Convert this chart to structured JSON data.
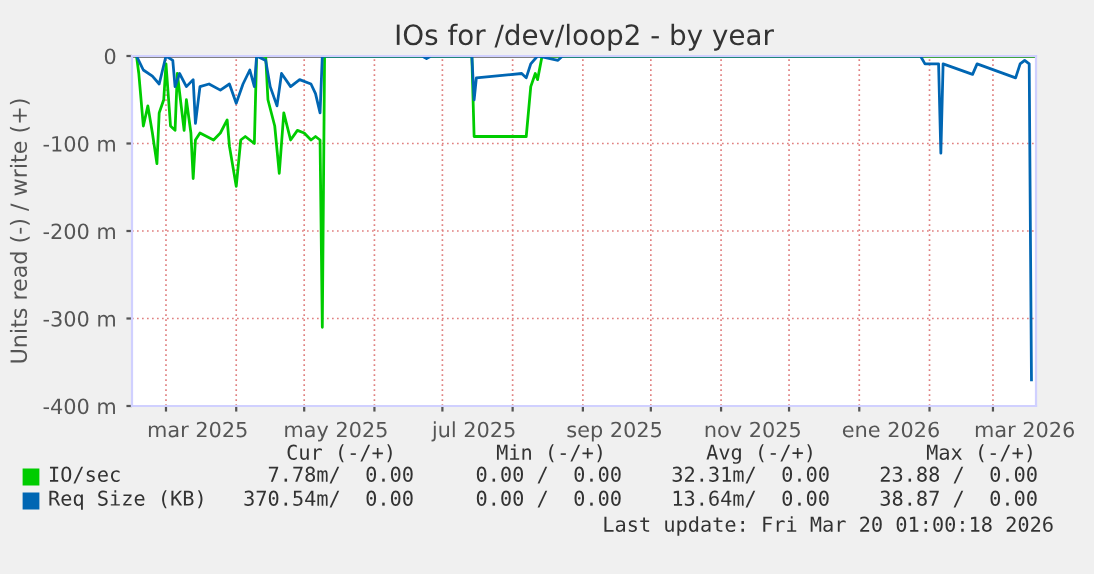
{
  "chart_data": {
    "type": "line",
    "title": "IOs for /dev/loop2 - by year",
    "ylabel": "Units read (-) / write (+)",
    "xlim": [
      "2025-02-14",
      "2026-03-20"
    ],
    "ylim": [
      -400,
      0
    ],
    "yticks": [
      {
        "value": 0,
        "label": "0"
      },
      {
        "value": -100,
        "label": "-100 m"
      },
      {
        "value": -200,
        "label": "-200 m"
      },
      {
        "value": -300,
        "label": "-300 m"
      },
      {
        "value": -400,
        "label": "-400 m"
      }
    ],
    "xticks": [
      {
        "value": "2025-03-01",
        "label": null
      },
      {
        "value": "2025-03-15",
        "label": "mar 2025"
      },
      {
        "value": "2025-04-01",
        "label": null
      },
      {
        "value": "2025-05-01",
        "label": null
      },
      {
        "value": "2025-05-15",
        "label": "may 2025"
      },
      {
        "value": "2025-06-01",
        "label": null
      },
      {
        "value": "2025-07-01",
        "label": null
      },
      {
        "value": "2025-07-15",
        "label": "jul 2025"
      },
      {
        "value": "2025-08-01",
        "label": null
      },
      {
        "value": "2025-09-01",
        "label": null
      },
      {
        "value": "2025-09-15",
        "label": "sep 2025"
      },
      {
        "value": "2025-10-01",
        "label": null
      },
      {
        "value": "2025-11-01",
        "label": null
      },
      {
        "value": "2025-11-15",
        "label": "nov 2025"
      },
      {
        "value": "2025-12-01",
        "label": null
      },
      {
        "value": "2026-01-01",
        "label": null
      },
      {
        "value": "2026-01-15",
        "label": "ene 2026"
      },
      {
        "value": "2026-02-01",
        "label": null
      },
      {
        "value": "2026-03-01",
        "label": null
      },
      {
        "value": "2026-03-15",
        "label": "mar 2026"
      }
    ],
    "grid": true,
    "legend": "bottom",
    "marker": "none",
    "line_style": "solid",
    "series": [
      {
        "name": "IO/sec",
        "color": "#00cc00",
        "x": [
          "2025-02-16",
          "2025-02-17",
          "2025-02-19",
          "2025-02-21",
          "2025-02-23",
          "2025-02-25",
          "2025-02-26",
          "2025-02-28",
          "2025-03-01",
          "2025-03-03",
          "2025-03-05",
          "2025-03-06",
          "2025-03-09",
          "2025-03-10",
          "2025-03-12",
          "2025-03-13",
          "2025-03-14",
          "2025-03-16",
          "2025-03-19",
          "2025-03-22",
          "2025-03-25",
          "2025-03-28",
          "2025-03-29",
          "2025-04-01",
          "2025-04-03",
          "2025-04-05",
          "2025-04-09",
          "2025-04-10",
          "2025-04-14",
          "2025-04-15",
          "2025-04-18",
          "2025-04-20",
          "2025-04-22",
          "2025-04-25",
          "2025-04-28",
          "2025-05-01",
          "2025-05-04",
          "2025-05-06",
          "2025-05-08",
          "2025-05-09",
          "2025-05-10",
          "2025-07-14",
          "2025-07-15",
          "2025-08-07",
          "2025-08-09",
          "2025-08-11",
          "2025-08-12",
          "2025-08-14",
          "2026-03-20"
        ],
        "values": [
          0,
          -20,
          -80,
          -57,
          -88,
          -123,
          -65,
          -50,
          -9,
          -80,
          -85,
          -20,
          -85,
          -50,
          -88,
          -140,
          -96,
          -88,
          -92,
          -96,
          -88,
          -73,
          -103,
          -149,
          -96,
          -92,
          -100,
          0,
          0,
          -50,
          -80,
          -134,
          -65,
          -96,
          -85,
          -88,
          -96,
          -92,
          -96,
          -310,
          0,
          0,
          -92,
          -92,
          -35,
          -20,
          -27,
          0,
          0
        ]
      },
      {
        "name": "Req Size (KB)",
        "color": "#0066b3",
        "x": [
          "2025-02-16",
          "2025-02-19",
          "2025-02-23",
          "2025-02-26",
          "2025-03-01",
          "2025-03-04",
          "2025-03-05",
          "2025-03-07",
          "2025-03-10",
          "2025-03-13",
          "2025-03-14",
          "2025-03-16",
          "2025-03-20",
          "2025-03-25",
          "2025-03-29",
          "2025-04-01",
          "2025-04-04",
          "2025-04-07",
          "2025-04-09",
          "2025-04-10",
          "2025-04-14",
          "2025-04-16",
          "2025-04-19",
          "2025-04-21",
          "2025-04-25",
          "2025-04-29",
          "2025-05-04",
          "2025-05-06",
          "2025-05-08",
          "2025-05-09",
          "2025-06-22",
          "2025-06-24",
          "2025-06-26",
          "2025-07-14",
          "2025-07-15",
          "2025-07-16",
          "2025-08-05",
          "2025-08-07",
          "2025-08-09",
          "2025-08-12",
          "2025-08-21",
          "2025-08-23",
          "2026-01-28",
          "2026-01-30",
          "2026-02-05",
          "2026-02-06",
          "2026-02-07",
          "2026-02-20",
          "2026-02-22",
          "2026-03-11",
          "2026-03-13",
          "2026-03-15",
          "2026-03-17",
          "2026-03-18"
        ],
        "values": [
          0,
          -16,
          -23,
          -32,
          0,
          -5,
          -35,
          -20,
          -35,
          -27,
          -77,
          -35,
          -32,
          -39,
          -32,
          -54,
          -32,
          -16,
          -35,
          0,
          -5,
          -35,
          -57,
          -20,
          -35,
          -27,
          -32,
          -43,
          -65,
          0,
          0,
          -3,
          0,
          0,
          -50,
          -25,
          -20,
          -25,
          -9,
          0,
          -5,
          0,
          0,
          -9,
          -9,
          -111,
          -9,
          -21,
          -9,
          -25,
          -9,
          -5,
          -9,
          -370
        ]
      }
    ],
    "annotations": [
      "Cur (-/+)",
      "Min (-/+)",
      "Avg (-/+)",
      "Max (-/+)",
      "7.78m/  0.00",
      "0.00 /  0.00",
      "32.31m/  0.00",
      "23.88 /  0.00",
      "370.54m/  0.00",
      "0.00 /  0.00",
      "13.64m/  0.00",
      "38.87 /  0.00",
      "Last update: Fri Mar 20 01:00:18 2026"
    ]
  }
}
